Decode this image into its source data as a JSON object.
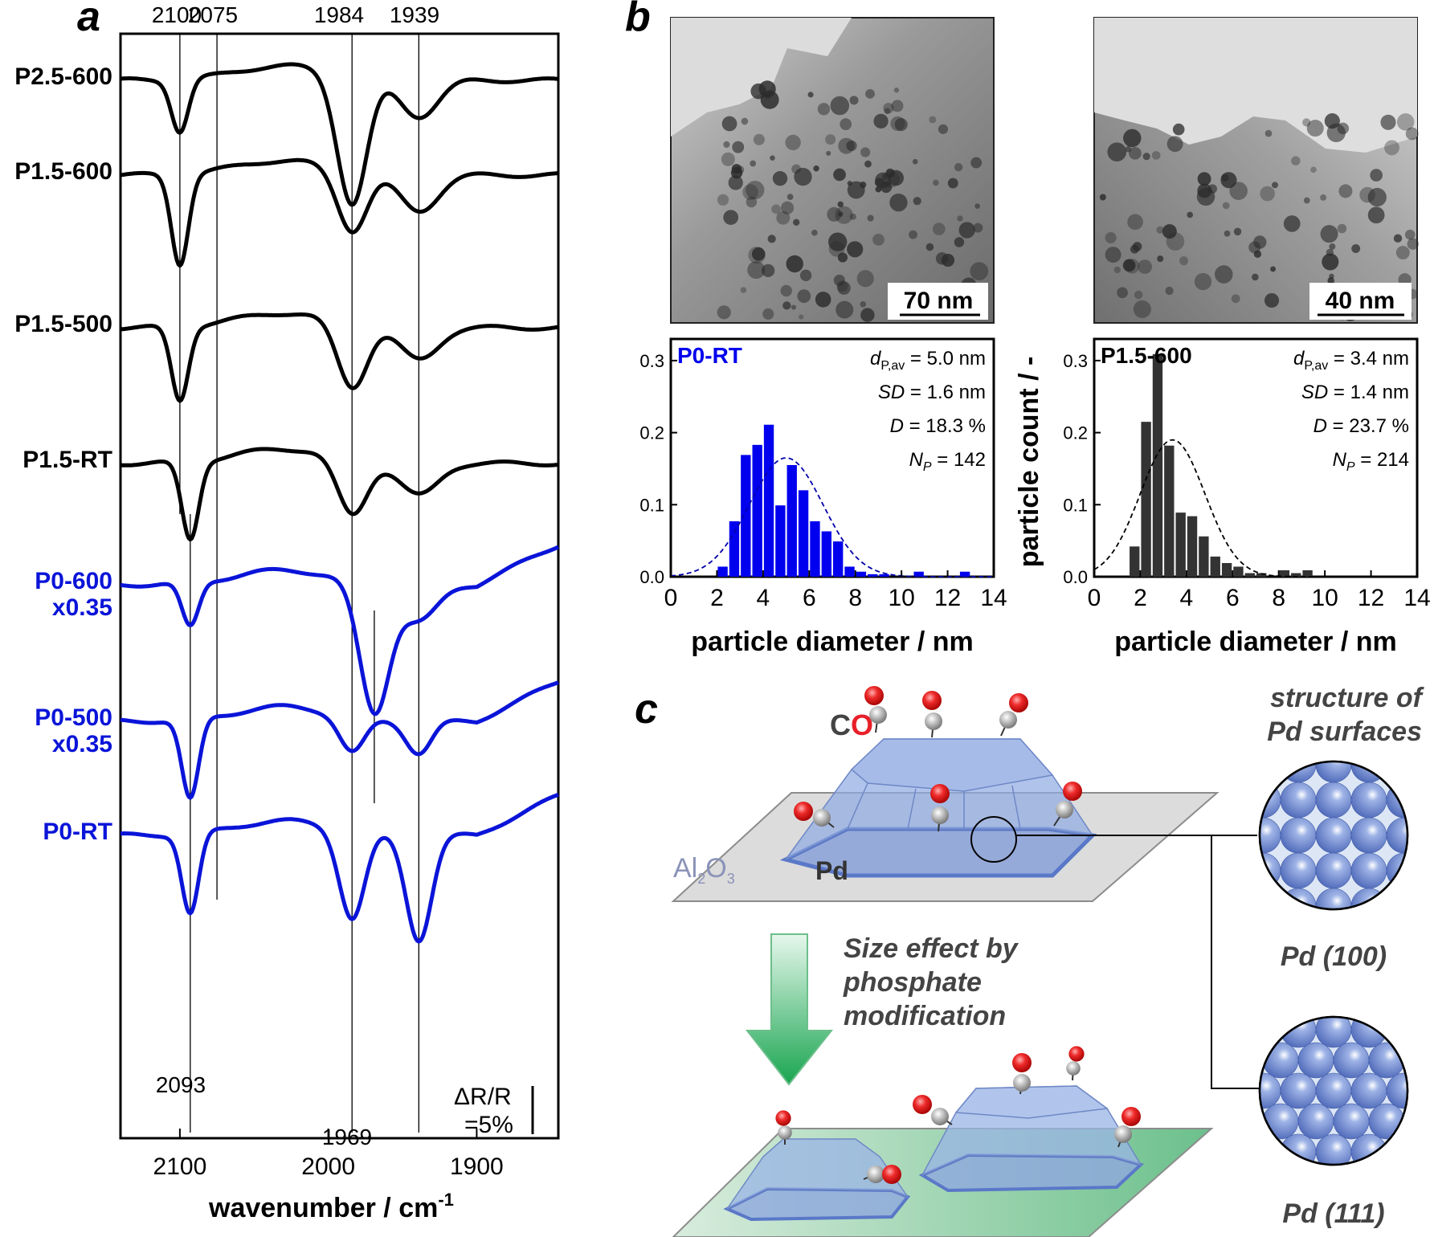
{
  "panel_labels": {
    "a": "a",
    "b": "b",
    "c": "c"
  },
  "colors": {
    "black": "#000000",
    "blue": "#0000dd",
    "red": "#e8202a",
    "pd": "#8aa6dc",
    "support_gray": "#d9d9d9",
    "support_green": "#7cc79a",
    "arrow_green": "#1aaa55"
  },
  "chart_data": [
    {
      "type": "line",
      "panel": "a",
      "xlabel": "wavenumber / cm",
      "xlabel_sup": "-1",
      "xlim": [
        2140,
        1845
      ],
      "xticks": [
        "2100",
        "2000",
        "1900"
      ],
      "top_markers": [
        "2100",
        "2075",
        "1984",
        "1939"
      ],
      "bottom_markers": [
        "2093",
        "1969"
      ],
      "scale_bar": {
        "line1": "ΔR/R",
        "line2": "=5%"
      },
      "series": [
        {
          "name": "P2.5-600",
          "color": "black",
          "baseline": 100,
          "dips": [
            [
              2100,
              65,
              8
            ],
            [
              1984,
              160,
              14
            ],
            [
              1939,
              45,
              18
            ]
          ]
        },
        {
          "name": "P1.5-600",
          "color": "black",
          "baseline": 218,
          "dips": [
            [
              2100,
              112,
              8
            ],
            [
              1984,
              75,
              14
            ],
            [
              1939,
              45,
              18
            ]
          ]
        },
        {
          "name": "P1.5-500",
          "color": "black",
          "baseline": 408,
          "dips": [
            [
              2100,
              92,
              8
            ],
            [
              1984,
              80,
              14
            ],
            [
              1939,
              40,
              18
            ]
          ]
        },
        {
          "name": "P1.5-RT",
          "color": "black",
          "baseline": 577,
          "dips": [
            [
              2093,
              97,
              8
            ],
            [
              1984,
              70,
              14
            ],
            [
              1939,
              40,
              18
            ]
          ]
        },
        {
          "name": "P0-600",
          "name2": "x0.35",
          "color": "blue",
          "baseline": 728,
          "dips": [
            [
              2093,
              55,
              8
            ],
            [
              1969,
              160,
              14
            ],
            [
              1939,
              45,
              18
            ]
          ]
        },
        {
          "name": "P0-500",
          "name2": "x0.35",
          "color": "blue",
          "baseline": 898,
          "dips": [
            [
              2093,
              100,
              8
            ],
            [
              1984,
              45,
              12
            ],
            [
              1939,
              40,
              12
            ]
          ]
        },
        {
          "name": "P0-RT",
          "color": "blue",
          "baseline": 1040,
          "dips": [
            [
              2093,
              100,
              8
            ],
            [
              1984,
              110,
              12
            ],
            [
              1939,
              130,
              12
            ]
          ]
        }
      ]
    },
    {
      "type": "bar",
      "panel": "b-left",
      "sample": "P0-RT",
      "xlabel": "particle diameter / nm",
      "xlim": [
        0,
        14
      ],
      "ylim": [
        0,
        0.33
      ],
      "xticks": [
        "0",
        "2",
        "4",
        "6",
        "8",
        "10",
        "12",
        "14"
      ],
      "yticks": [
        "0.0",
        "0.1",
        "0.2",
        "0.3"
      ],
      "stats": [
        {
          "sym": "d",
          "sub": "P,av",
          "val": " = 5.0 nm"
        },
        {
          "sym": "SD",
          "sub": "",
          "val": " = 1.6 nm"
        },
        {
          "sym": "D",
          "sub": "",
          "val": " = 18.3 %"
        },
        {
          "sym": "N",
          "sub": "P",
          "val": " = 142"
        }
      ],
      "bins": [
        2.25,
        2.75,
        3.25,
        3.75,
        4.25,
        4.75,
        5.25,
        5.75,
        6.25,
        6.75,
        7.25,
        7.75,
        8.25,
        8.75,
        9.25,
        10.75,
        12.75
      ],
      "values": [
        0.014,
        0.077,
        0.169,
        0.183,
        0.211,
        0.099,
        0.155,
        0.12,
        0.077,
        0.063,
        0.049,
        0.014,
        0.007,
        0.0035,
        0.0035,
        0.007,
        0.007
      ],
      "fit": {
        "mean": 5.0,
        "sd": 1.6,
        "peak": 0.165
      },
      "bar_color": "#0000ee"
    },
    {
      "type": "bar",
      "panel": "b-right",
      "sample": "P1.5-600",
      "xlabel": "particle diameter / nm",
      "ylabel": "particle count / -",
      "xlim": [
        0,
        14
      ],
      "ylim": [
        0,
        0.33
      ],
      "xticks": [
        "0",
        "2",
        "4",
        "6",
        "8",
        "10",
        "12",
        "14"
      ],
      "yticks": [
        "0.0",
        "0.1",
        "0.2",
        "0.3"
      ],
      "stats": [
        {
          "sym": "d",
          "sub": "P,av",
          "val": " = 3.4 nm"
        },
        {
          "sym": "SD",
          "sub": "",
          "val": " = 1.4 nm"
        },
        {
          "sym": "D",
          "sub": "",
          "val": " = 23.7 %"
        },
        {
          "sym": "N",
          "sub": "P",
          "val": " = 214"
        }
      ],
      "bins": [
        1.75,
        2.25,
        2.75,
        3.25,
        3.75,
        4.25,
        4.75,
        5.25,
        5.75,
        6.25,
        6.75,
        7.25,
        7.75,
        8.25,
        8.75,
        9.25
      ],
      "values": [
        0.042,
        0.215,
        0.309,
        0.182,
        0.089,
        0.084,
        0.056,
        0.028,
        0.019,
        0.014,
        0.005,
        0.005,
        0.0,
        0.009,
        0.005,
        0.009
      ],
      "fit": {
        "mean": 3.4,
        "sd": 1.4,
        "peak": 0.19
      },
      "bar_color": "#333333"
    }
  ],
  "tem": {
    "left_scale": "70 nm",
    "right_scale": "40 nm"
  },
  "panel_c": {
    "co_c": "C",
    "co_o": "O",
    "support_label": "Al",
    "support_sub1": "2",
    "support_o": "O",
    "support_sub2": "3",
    "pd_label": "Pd",
    "structure_title_1": "structure of",
    "structure_title_2": "Pd surfaces",
    "pd100": "Pd (100)",
    "pd111": "Pd (111)",
    "arrow_text_1": "Size effect by",
    "arrow_text_2": "phosphate",
    "arrow_text_3": "modification"
  }
}
